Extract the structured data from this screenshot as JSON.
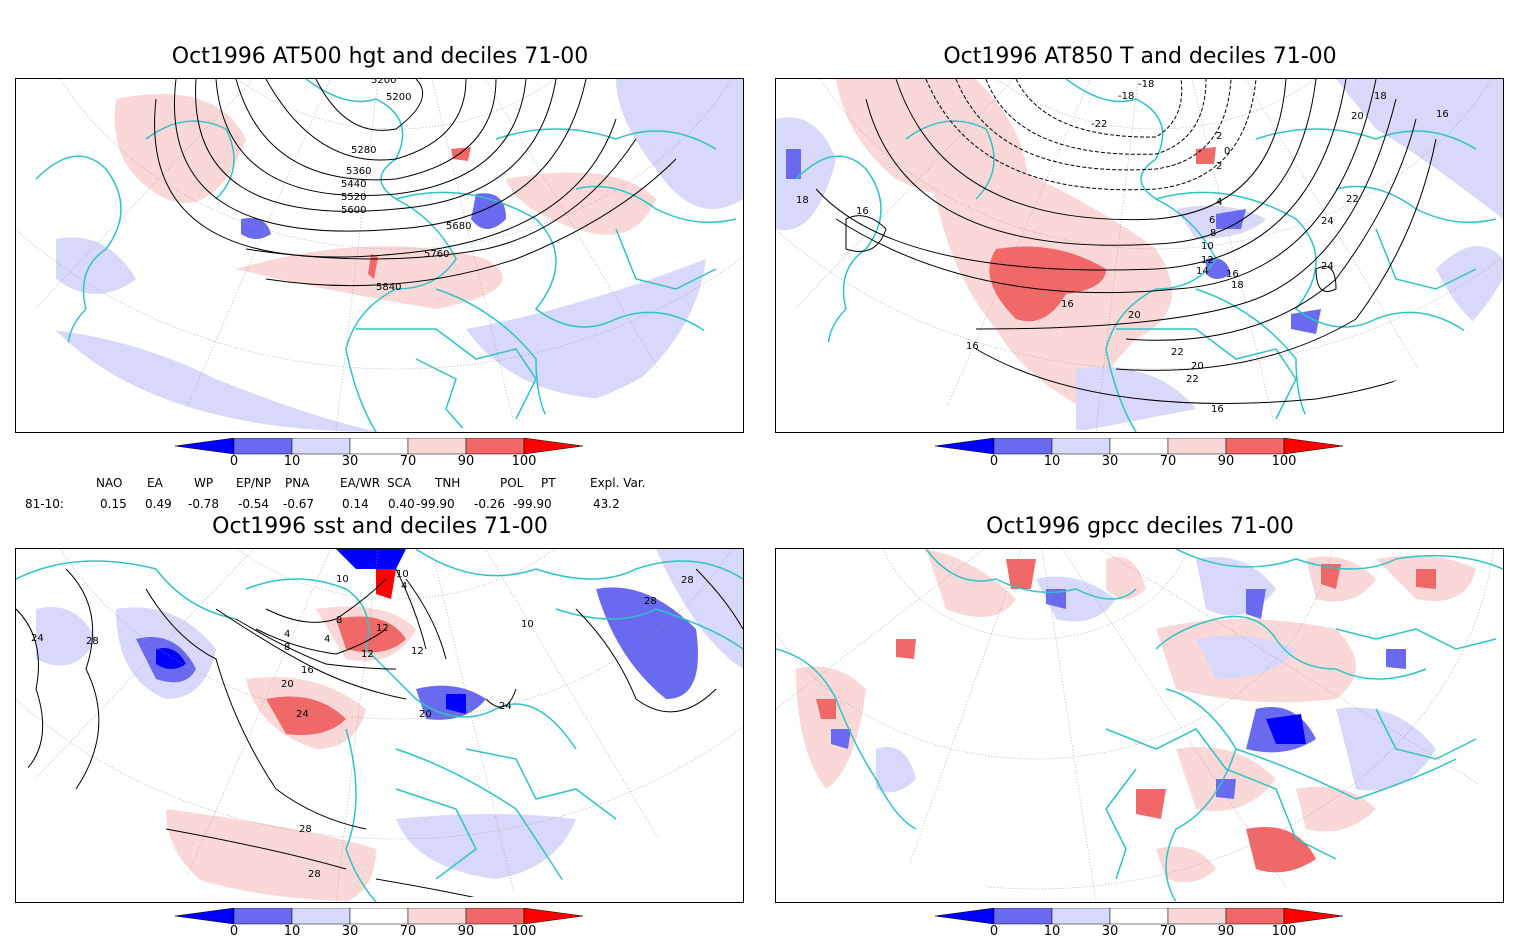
{
  "panels": [
    {
      "title": "Oct1996 AT500 hgt and deciles 71-00",
      "contour_labels": [
        "5200",
        "5280",
        "5360",
        "5440",
        "5520",
        "5600",
        "5680",
        "5760",
        "5840"
      ]
    },
    {
      "title": "Oct1996 AT850 T and deciles 71-00",
      "contour_labels": [
        "-18",
        "-18",
        "-22",
        "2",
        "0",
        "2",
        "4",
        "6",
        "8",
        "10",
        "12",
        "14",
        "16",
        "18",
        "16",
        "18",
        "20",
        "22",
        "22",
        "24",
        "24",
        "20",
        "18",
        "16",
        "16",
        "16",
        "20",
        "22",
        "16"
      ]
    },
    {
      "title": "Oct1996 sst and deciles 71-00",
      "contour_labels": [
        "28",
        "24",
        "28",
        "28",
        "4",
        "8",
        "4",
        "8",
        "12",
        "16",
        "20",
        "24",
        "20",
        "24",
        "28",
        "28",
        "10",
        "10",
        "4",
        "12",
        "12",
        "10"
      ]
    },
    {
      "title": "Oct1996 gpcc deciles 71-00",
      "contour_labels": []
    }
  ],
  "colorbar": {
    "ticks": [
      "0",
      "10",
      "30",
      "70",
      "90",
      "100"
    ],
    "colors": [
      "#0000ff",
      "#6a6af0",
      "#d8d8fa",
      "#ffffff",
      "#fad8d8",
      "#f06868",
      "#ff0000"
    ]
  },
  "indices": {
    "headers": [
      "NAO",
      "EA",
      "WP",
      "EP/NP",
      "PNA",
      "EA/WR",
      "SCA",
      "TNH",
      "POL",
      "PT",
      "Expl. Var."
    ],
    "row_label": "81-10:",
    "values": [
      "0.15",
      "0.49",
      "-0.78",
      "-0.54",
      "-0.67",
      "0.14",
      "0.40",
      "-99.90",
      "-0.26",
      "-99.90",
      "43.2"
    ]
  }
}
